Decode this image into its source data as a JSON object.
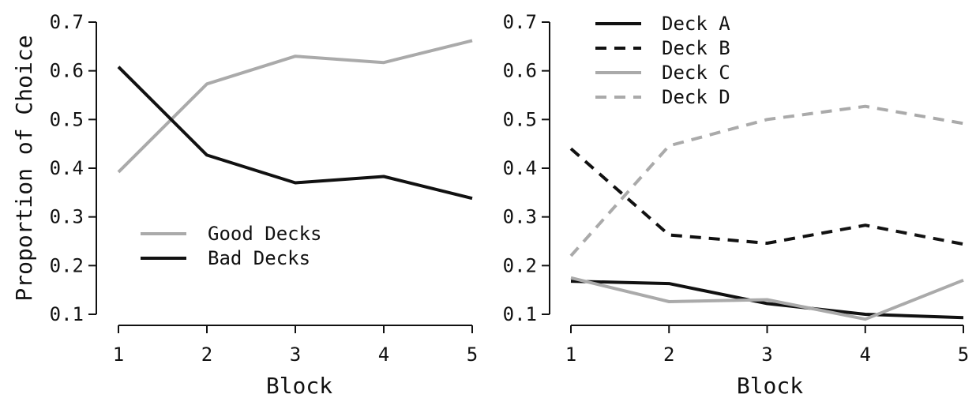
{
  "chart_data": [
    {
      "type": "line",
      "title": "",
      "xlabel": "Block",
      "ylabel": "Proportion of Choice",
      "x": [
        1,
        2,
        3,
        4,
        5
      ],
      "xlim": [
        1,
        5
      ],
      "ylim": [
        0.1,
        0.7
      ],
      "yticks": [
        "0.1",
        "0.2",
        "0.3",
        "0.4",
        "0.5",
        "0.6",
        "0.7"
      ],
      "xticks": [
        "1",
        "2",
        "3",
        "4",
        "5"
      ],
      "grid": false,
      "legend_position": "bottom-left",
      "series": [
        {
          "name": "Good Decks",
          "values": [
            0.392,
            0.573,
            0.63,
            0.617,
            0.662
          ],
          "color": "#aaaaaa",
          "dash": "solid"
        },
        {
          "name": "Bad Decks",
          "values": [
            0.608,
            0.427,
            0.37,
            0.383,
            0.338
          ],
          "color": "#111111",
          "dash": "solid"
        }
      ]
    },
    {
      "type": "line",
      "title": "",
      "xlabel": "Block",
      "ylabel": "",
      "x": [
        1,
        2,
        3,
        4,
        5
      ],
      "xlim": [
        1,
        5
      ],
      "ylim": [
        0.1,
        0.7
      ],
      "yticks": [
        "0.1",
        "0.2",
        "0.3",
        "0.4",
        "0.5",
        "0.6",
        "0.7"
      ],
      "xticks": [
        "1",
        "2",
        "3",
        "4",
        "5"
      ],
      "grid": false,
      "legend_position": "top-left",
      "series": [
        {
          "name": "Deck A",
          "values": [
            0.168,
            0.163,
            0.122,
            0.1,
            0.093
          ],
          "color": "#111111",
          "dash": "solid"
        },
        {
          "name": "Deck B",
          "values": [
            0.44,
            0.263,
            0.246,
            0.283,
            0.244
          ],
          "color": "#111111",
          "dash": "dashed"
        },
        {
          "name": "Deck C",
          "values": [
            0.175,
            0.126,
            0.13,
            0.09,
            0.17
          ],
          "color": "#aaaaaa",
          "dash": "solid"
        },
        {
          "name": "Deck D",
          "values": [
            0.22,
            0.446,
            0.5,
            0.527,
            0.492
          ],
          "color": "#aaaaaa",
          "dash": "dashed"
        }
      ]
    }
  ]
}
